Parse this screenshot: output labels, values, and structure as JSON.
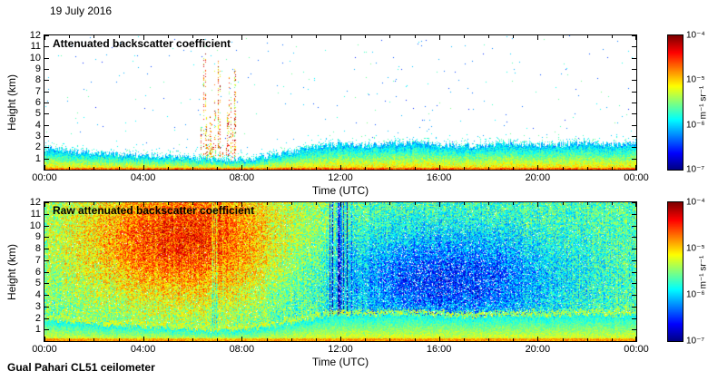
{
  "date_label": "19 July 2016",
  "footer_label": "Gual Pahari CL51 ceilometer",
  "chart_data": [
    {
      "type": "heatmap",
      "title": "Attenuated backscatter coefficient",
      "xlabel": "Time (UTC)",
      "ylabel": "Height (km)",
      "x_ticks": [
        "00:00",
        "04:00",
        "08:00",
        "12:00",
        "16:00",
        "20:00",
        "00:00"
      ],
      "x_range_hours": [
        0,
        24
      ],
      "y_ticks": [
        "12",
        "11",
        "10",
        "9",
        "8",
        "7",
        "6",
        "5",
        "4",
        "3",
        "2",
        "1"
      ],
      "ylim_km": [
        0,
        12
      ],
      "colormap": "jet",
      "colorbar_ticks": [
        "10⁻⁴",
        "10⁻⁵",
        "10⁻⁶",
        "10⁻⁷"
      ],
      "colorbar_unit": "m⁻¹ sr⁻¹",
      "value_scale": "log10, 1e-7 to 1e-4",
      "features": [
        "White background (below noise floor) above the aerosol layer",
        "Aerosol boundary layer from the surface to ~0.9-2.4 km, shallowest ~07:00-08:00, deepening after ~09:00 to ~2-2.5 km for the rest of the day",
        "Strongest backscatter (yellow/orange) near the surface, green toward layer top with speckled cyan fringe",
        "Intermittent cloud/precipitation streaks between ~06:20 and ~07:50 reaching up to ~11 km (red/orange dotted columns)",
        "Sparse isolated blue/green specks above the layer"
      ],
      "render": {
        "boundary_layer_km": [
          [
            0,
            1.9
          ],
          [
            1,
            1.65
          ],
          [
            2,
            1.5
          ],
          [
            3,
            1.35
          ],
          [
            4,
            1.25
          ],
          [
            5,
            1.15
          ],
          [
            6,
            1.05
          ],
          [
            7,
            0.9
          ],
          [
            8,
            0.95
          ],
          [
            9,
            1.2
          ],
          [
            10,
            1.6
          ],
          [
            11,
            2.05
          ],
          [
            12,
            2.3
          ],
          [
            13,
            2.2
          ],
          [
            14,
            2.3
          ],
          [
            15,
            2.4
          ],
          [
            16,
            2.2
          ],
          [
            17,
            2.1
          ],
          [
            18,
            2.15
          ],
          [
            19,
            2.3
          ],
          [
            20,
            2.2
          ],
          [
            21,
            2.25
          ],
          [
            22,
            2.3
          ],
          [
            23,
            2.25
          ],
          [
            24,
            2.35
          ]
        ],
        "event": {
          "t_start": 6.3,
          "t_end": 7.85,
          "max_top_km": 11.2,
          "col_prob": 0.55,
          "dot_prob_min": 0.18,
          "dot_prob_max": 0.5,
          "u_min": 0.45,
          "u_max": 1.0
        }
      }
    },
    {
      "type": "heatmap",
      "title": "Raw attenuated backscatter coefficient",
      "xlabel": "Time (UTC)",
      "ylabel": "Height (km)",
      "x_ticks": [
        "00:00",
        "04:00",
        "08:00",
        "12:00",
        "16:00",
        "20:00",
        "00:00"
      ],
      "x_range_hours": [
        0,
        24
      ],
      "y_ticks": [
        "12",
        "11",
        "10",
        "9",
        "8",
        "7",
        "6",
        "5",
        "4",
        "3",
        "2",
        "1"
      ],
      "ylim_km": [
        0,
        12
      ],
      "colormap": "jet",
      "colorbar_ticks": [
        "10⁻⁴",
        "10⁻⁵",
        "10⁻⁶",
        "10⁻⁷"
      ],
      "colorbar_unit": "m⁻¹ sr⁻¹",
      "value_scale": "log10, 1e-7 to 1e-4",
      "features": [
        "Full-field speckle noise (no noise filtering)",
        "Elevated background noise (orange/red) roughly 00:00-10:00 above ~3 km, strongest ~03:00-08:00 at 5-12 km",
        "Reduced background noise (blue with white speckle) roughly 12:30-21:00 between ~2 and ~9 km",
        "Dark blue vertical stripes near 12:00 and fainter ones near 07:00",
        "Same surface aerosol layer (green/yellow) below ~2.5 km as in the filtered panel"
      ],
      "render": {
        "boundary_layer_km": [
          [
            0,
            1.9
          ],
          [
            1,
            1.65
          ],
          [
            2,
            1.5
          ],
          [
            3,
            1.35
          ],
          [
            4,
            1.25
          ],
          [
            5,
            1.15
          ],
          [
            6,
            1.05
          ],
          [
            7,
            0.9
          ],
          [
            8,
            0.95
          ],
          [
            9,
            1.2
          ],
          [
            10,
            1.6
          ],
          [
            11,
            2.05
          ],
          [
            12,
            2.3
          ],
          [
            13,
            2.2
          ],
          [
            14,
            2.3
          ],
          [
            15,
            2.4
          ],
          [
            16,
            2.2
          ],
          [
            17,
            2.1
          ],
          [
            18,
            2.15
          ],
          [
            19,
            2.3
          ],
          [
            20,
            2.2
          ],
          [
            21,
            2.25
          ],
          [
            22,
            2.3
          ],
          [
            23,
            2.25
          ],
          [
            24,
            2.35
          ]
        ],
        "warm": {
          "t": 5.5,
          "h": 9.0,
          "sigma_t": 3.1,
          "sigma_h": 4.2,
          "amp": 0.38
        },
        "cool": {
          "t": 16.3,
          "h": 5.3,
          "sigma_t": 3.3,
          "sigma_h": 3.1,
          "amp": -0.3
        },
        "streaks": [
          {
            "t_start": 11.5,
            "t_end": 12.55,
            "prob": 0.5,
            "amp_min": 0.12,
            "amp_max": 0.42
          },
          {
            "t_start": 6.75,
            "t_end": 7.4,
            "prob": 0.35,
            "amp_min": 0.05,
            "amp_max": 0.2
          }
        ],
        "noise_amp": 0.3
      }
    }
  ]
}
